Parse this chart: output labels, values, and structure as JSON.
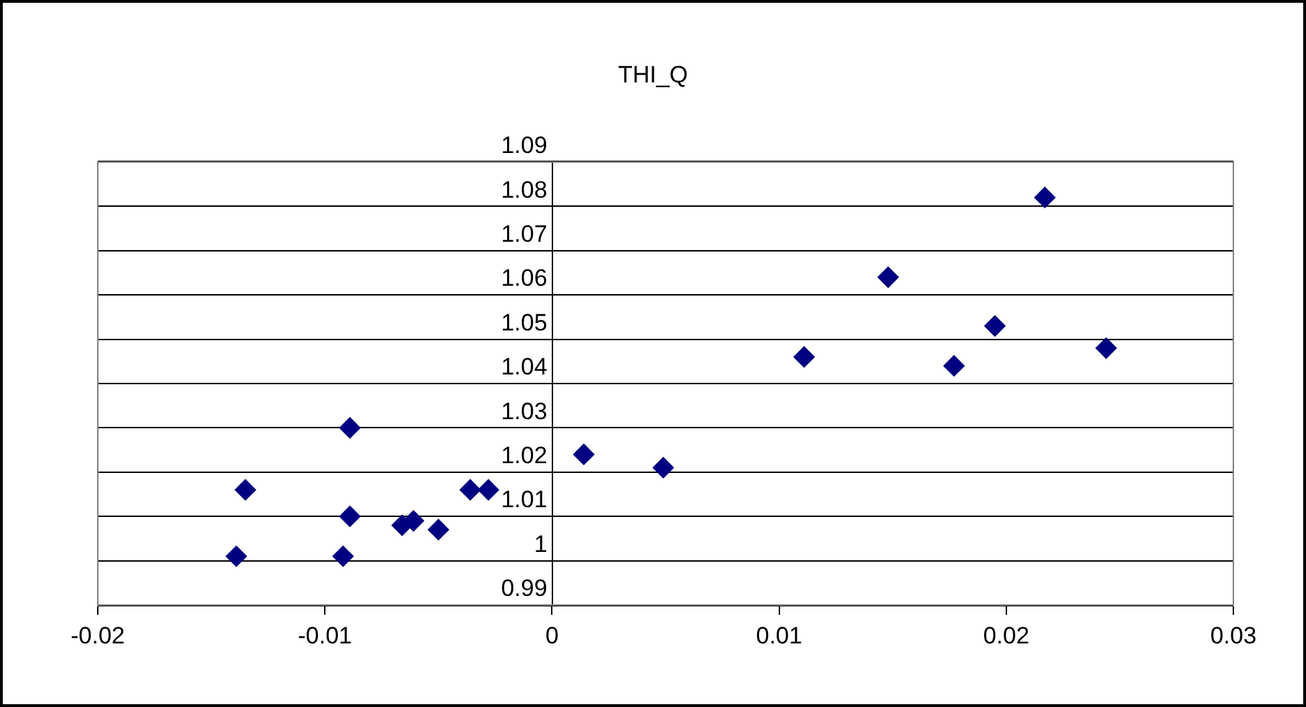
{
  "chart_data": {
    "type": "scatter",
    "title": "THI_Q",
    "x": [
      -0.0135,
      -0.0139,
      -0.0089,
      -0.0089,
      -0.0092,
      -0.0066,
      -0.0061,
      -0.005,
      -0.0036,
      -0.0028,
      0.0014,
      0.0049,
      0.0111,
      0.0148,
      0.0177,
      0.0195,
      0.0217,
      0.0244
    ],
    "series": [
      {
        "color": "#000080",
        "values": [
          1.016,
          1.001,
          1.03,
          1.01,
          1.001,
          1.008,
          1.009,
          1.007,
          1.016,
          1.016,
          1.024,
          1.021,
          1.046,
          1.064,
          1.044,
          1.053,
          1.082,
          1.048
        ]
      }
    ],
    "xlim": [
      -0.02,
      0.03
    ],
    "xticks": [
      -0.02,
      -0.01,
      0,
      0.01,
      0.02,
      0.03
    ],
    "ylim": [
      0.99,
      1.09
    ],
    "yticks": [
      0.99,
      1,
      1.01,
      1.02,
      1.03,
      1.04,
      1.05,
      1.06,
      1.07,
      1.08,
      1.09
    ],
    "grid": "y",
    "marker": "diamond",
    "legend": false
  }
}
